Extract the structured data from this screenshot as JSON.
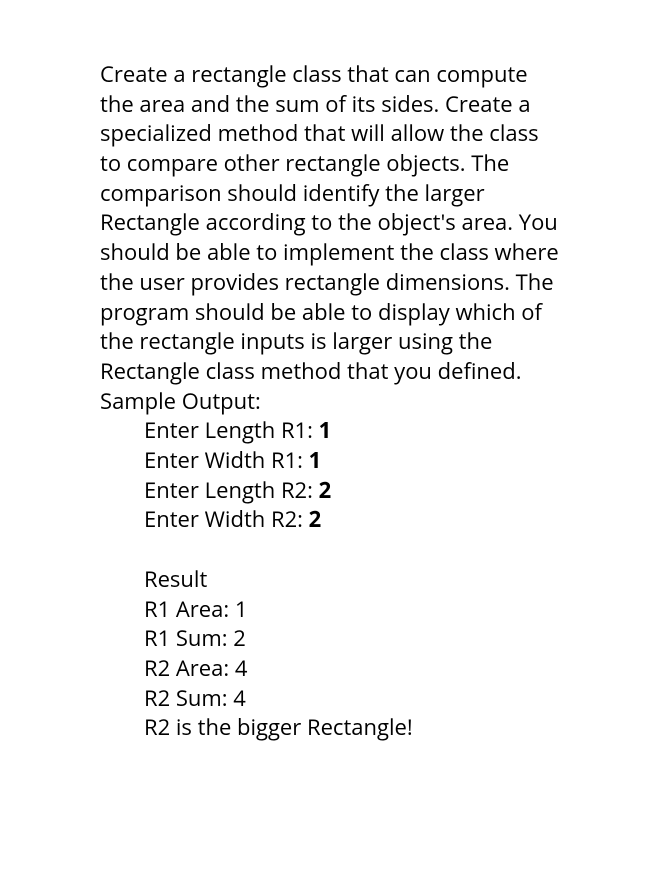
{
  "description": "Create a rectangle class that can compute the area and the sum of its sides.  Create a specialized method that will allow the class to compare other rectangle objects.  The comparison should identify the larger Rectangle according to the object's area.  You should be able to implement the class where the user provides rectangle dimensions.  The program should be able to display which of the rectangle inputs is larger using the Rectangle class method that you defined.",
  "sample_output_label": "Sample Output:",
  "inputs": {
    "line1_prompt": "Enter Length R1:  ",
    "line1_value": "1",
    "line2_prompt": "Enter Width  R1:  ",
    "line2_value": "1",
    "line3_prompt": "Enter Length R2:  ",
    "line3_value": "2",
    "line4_prompt": "Enter Width  R2:  ",
    "line4_value": "2"
  },
  "results": {
    "header": "Result",
    "r1_area": "R1 Area: 1",
    "r1_sum": "R1 Sum: 2",
    "r2_area": "R2 Area: 4",
    "r2_sum": "R2 Sum: 4",
    "conclusion": "R2 is the bigger Rectangle!"
  }
}
